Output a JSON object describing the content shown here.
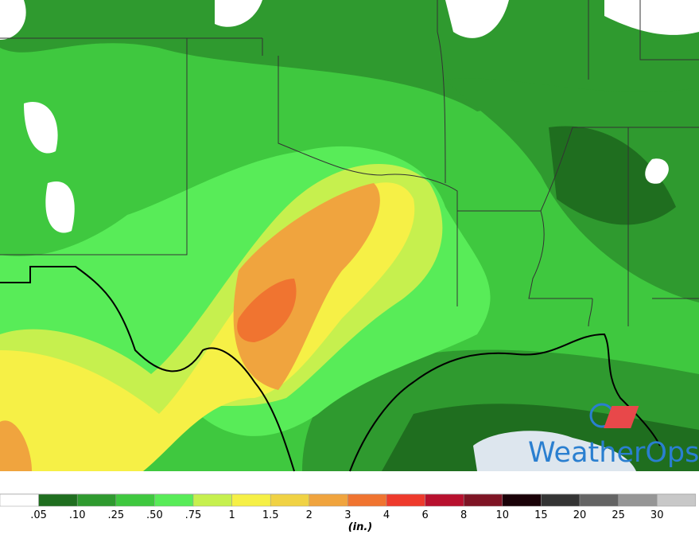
{
  "map": {
    "logo": "WeatherOps"
  },
  "legend": {
    "labels": [
      ".05",
      ".10",
      ".25",
      ".50",
      ".75",
      "1",
      "1.5",
      "2",
      "3",
      "4",
      "6",
      "8",
      "10",
      "15",
      "20",
      "25",
      "30"
    ],
    "colors": [
      "#ffffff",
      "#1f6e1f",
      "#2f9a2f",
      "#3fc83f",
      "#58ec58",
      "#c6f04e",
      "#f6f046",
      "#f0d244",
      "#f0a43e",
      "#f07430",
      "#ee3a2c",
      "#b8102e",
      "#7e1424",
      "#1a0208",
      "#343434",
      "#646464",
      "#969696",
      "#c8c8c8"
    ],
    "unit": "(in.)"
  }
}
